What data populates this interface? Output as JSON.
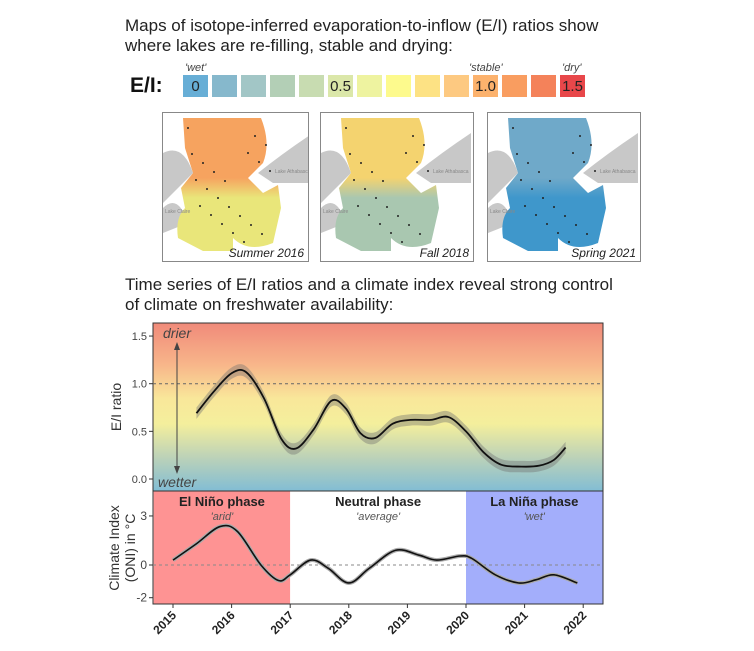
{
  "heading_maps": [
    "Maps of isotope-inferred evaporation-to-inflow (E/I) ratios show",
    "where lakes are re-filling, stable and drying:"
  ],
  "legend": {
    "key": "E/I:",
    "swatches": [
      {
        "label": "0",
        "color": "#67aed6"
      },
      {
        "label": "",
        "color": "#86b8cc"
      },
      {
        "label": "",
        "color": "#a2c6c6"
      },
      {
        "label": "",
        "color": "#b3cfb6"
      },
      {
        "label": "",
        "color": "#c8dcb1"
      },
      {
        "label": "0.5",
        "color": "#dbe7a9"
      },
      {
        "label": "",
        "color": "#eef3a0"
      },
      {
        "label": "",
        "color": "#fdfa8d"
      },
      {
        "label": "",
        "color": "#fde284"
      },
      {
        "label": "",
        "color": "#fdc981"
      },
      {
        "label": "1.0",
        "color": "#fcb26d"
      },
      {
        "label": "",
        "color": "#f99d60"
      },
      {
        "label": "",
        "color": "#f4825a"
      },
      {
        "label": "1.5",
        "color": "#e8474a"
      }
    ],
    "annotations": [
      {
        "label": "'wet'",
        "index": 0
      },
      {
        "label": "'stable'",
        "index": 10
      },
      {
        "label": "'dry'",
        "index": 13
      }
    ]
  },
  "maps": [
    {
      "label": "Summer 2016",
      "lake_labels": [
        "Lake Athabasca",
        "Lake Claire"
      ],
      "main_color": "#f6a35f",
      "south_color": "#e9e67a"
    },
    {
      "label": "Fall 2018",
      "lake_labels": [
        "Lake Athabasca",
        "Lake Claire"
      ],
      "main_color": "#f4d36f",
      "south_color": "#a9c7b0"
    },
    {
      "label": "Spring 2021",
      "lake_labels": [
        "Lake Athabasca",
        "Lake Claire"
      ],
      "main_color": "#6fa9c9",
      "south_color": "#3f97cb"
    }
  ],
  "heading_chart": [
    "Time series of E/I ratios and a climate index reveal strong control",
    "of climate on freshwater availability:"
  ],
  "chart_data": [
    {
      "type": "line",
      "ylabel": "E/I ratio",
      "ylim": [
        -0.08,
        1.6
      ],
      "yticks": [
        "0.0",
        "0.5",
        "1.0",
        "1.5"
      ],
      "reference_line": 1.0,
      "annotations": {
        "top": "drier",
        "bottom": "wetter"
      },
      "background": "gradient red (top) to blue (bottom)",
      "x": [
        2015.4,
        2015.7,
        2016.0,
        2016.25,
        2016.55,
        2016.85,
        2017.1,
        2017.4,
        2017.7,
        2017.95,
        2018.2,
        2018.45,
        2018.75,
        2019.05,
        2019.4,
        2019.7,
        2020.0,
        2020.3,
        2020.6,
        2020.95,
        2021.25,
        2021.5,
        2021.7
      ],
      "values": [
        0.69,
        0.92,
        1.11,
        1.12,
        0.85,
        0.42,
        0.32,
        0.52,
        0.82,
        0.74,
        0.48,
        0.43,
        0.58,
        0.62,
        0.62,
        0.65,
        0.5,
        0.28,
        0.15,
        0.13,
        0.14,
        0.2,
        0.33
      ],
      "band_halfwidth": 0.06
    },
    {
      "type": "line",
      "ylabel": "Climate Index\n(ONI) in °C",
      "ylabel_lines": [
        "Climate Index",
        "(ONI) in °C"
      ],
      "ylim": [
        -2.3,
        4.3
      ],
      "yticks": [
        "-2",
        "0",
        "3"
      ],
      "reference_line": 0,
      "xlim": [
        2014.67,
        2022.33
      ],
      "xticks": [
        "2015",
        "2016",
        "2017",
        "2018",
        "2019",
        "2020",
        "2021",
        "2022"
      ],
      "phases": [
        {
          "name": "El Niño phase",
          "desc": "'arid'",
          "start": 2014.67,
          "end": 2017,
          "color": "#fe9393"
        },
        {
          "name": "Neutral phase",
          "desc": "'average'",
          "start": 2017,
          "end": 2020,
          "color": "#ffffff"
        },
        {
          "name": "La Niña phase",
          "desc": "'wet'",
          "start": 2020,
          "end": 2022.33,
          "color": "#a3aefb"
        }
      ],
      "x": [
        2015.0,
        2015.4,
        2015.8,
        2016.1,
        2016.5,
        2016.8,
        2017.0,
        2017.35,
        2017.65,
        2018.0,
        2018.35,
        2018.8,
        2019.2,
        2019.5,
        2019.9,
        2020.1,
        2020.5,
        2020.9,
        2021.2,
        2021.5,
        2021.9
      ],
      "values": [
        0.3,
        1.3,
        2.35,
        2.05,
        0.0,
        -0.95,
        -0.6,
        0.3,
        -0.2,
        -1.1,
        -0.2,
        0.9,
        0.6,
        0.3,
        0.55,
        0.4,
        -0.6,
        -1.1,
        -0.9,
        -0.6,
        -1.1
      ]
    }
  ]
}
